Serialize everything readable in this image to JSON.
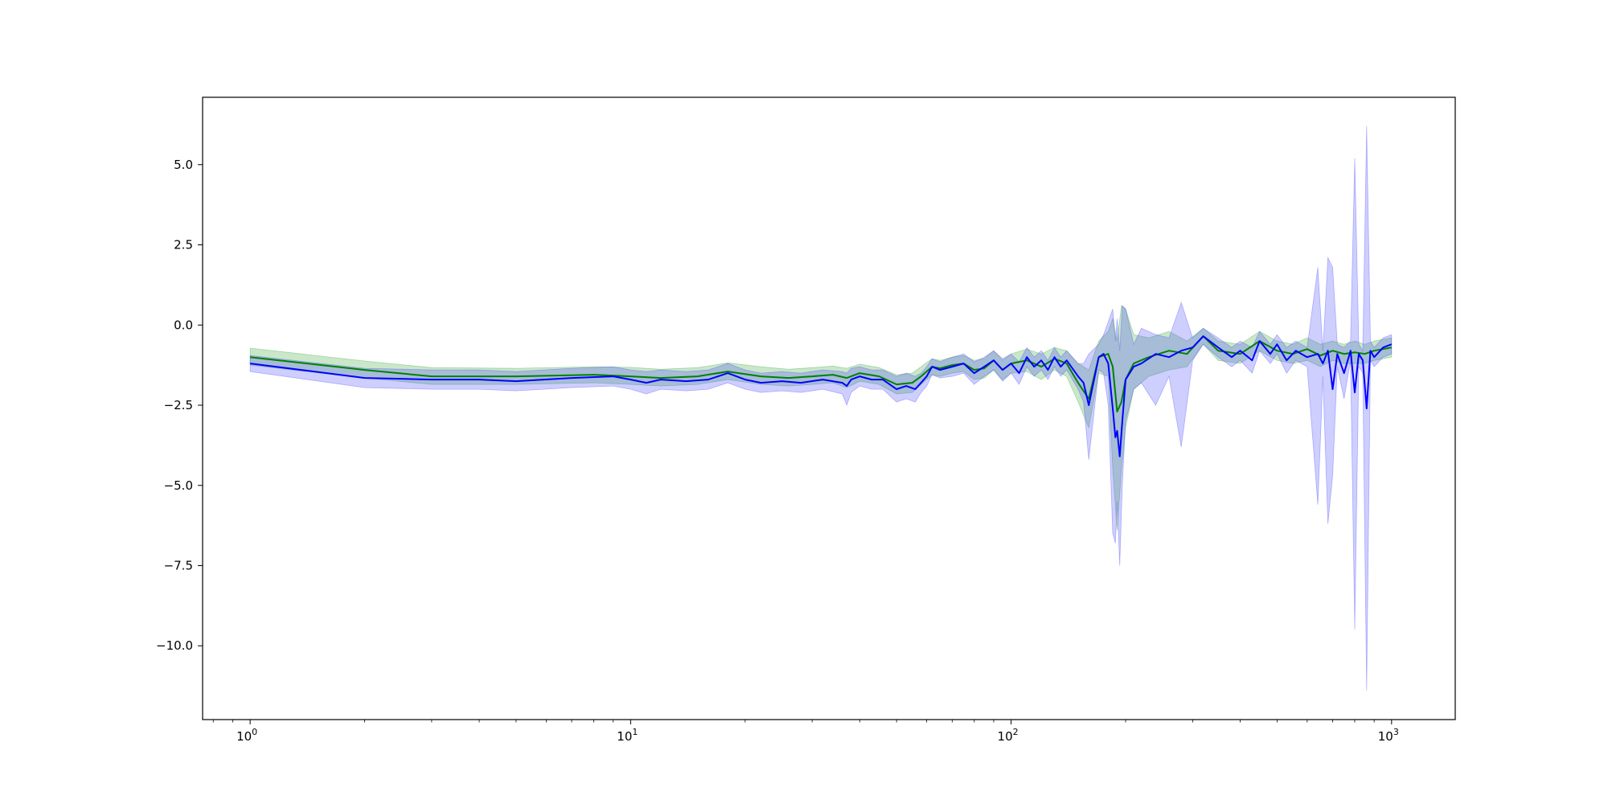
{
  "chart_data": {
    "type": "line",
    "title": "",
    "xlabel": "",
    "ylabel": "",
    "xscale": "log",
    "xlim": [
      0.75,
      1470
    ],
    "ylim": [
      -12.3,
      7.1
    ],
    "grid": false,
    "legend": "none",
    "x_ticks": [
      {
        "value": 1,
        "base": "10",
        "exp": "0"
      },
      {
        "value": 10,
        "base": "10",
        "exp": "1"
      },
      {
        "value": 100,
        "base": "10",
        "exp": "2"
      },
      {
        "value": 1000,
        "base": "10",
        "exp": "3"
      }
    ],
    "y_ticks": [
      {
        "value": 5.0,
        "label": "5.0"
      },
      {
        "value": 2.5,
        "label": "2.5"
      },
      {
        "value": 0.0,
        "label": "0.0"
      },
      {
        "value": -2.5,
        "label": "−2.5"
      },
      {
        "value": -5.0,
        "label": "−5.0"
      },
      {
        "value": -7.5,
        "label": "−7.5"
      },
      {
        "value": -10.0,
        "label": "−10.0"
      }
    ],
    "series": [
      {
        "color": "#008000",
        "band_color": "#2ca02c",
        "x": [
          1,
          2,
          3,
          5,
          8,
          10,
          12,
          15,
          18,
          22,
          26,
          30,
          34,
          37,
          40,
          45,
          50,
          55,
          58,
          62,
          65,
          70,
          75,
          80,
          85,
          90,
          95,
          100,
          110,
          120,
          130,
          140,
          150,
          160,
          170,
          180,
          185,
          190,
          195,
          200,
          210,
          230,
          260,
          290,
          320,
          350,
          400,
          450,
          500,
          550,
          600,
          650,
          700,
          750,
          800,
          850,
          900,
          1000
        ],
        "y": [
          -1.0,
          -1.4,
          -1.6,
          -1.6,
          -1.55,
          -1.6,
          -1.65,
          -1.6,
          -1.45,
          -1.6,
          -1.65,
          -1.6,
          -1.55,
          -1.65,
          -1.5,
          -1.6,
          -1.85,
          -1.8,
          -1.6,
          -1.3,
          -1.35,
          -1.25,
          -1.2,
          -1.4,
          -1.35,
          -1.1,
          -1.4,
          -1.2,
          -1.1,
          -1.3,
          -1.05,
          -1.2,
          -1.8,
          -2.3,
          -1.0,
          -0.9,
          -1.3,
          -2.7,
          -2.4,
          -1.7,
          -1.2,
          -1.0,
          -0.8,
          -0.9,
          -0.35,
          -0.8,
          -0.9,
          -0.5,
          -0.8,
          -0.9,
          -0.75,
          -0.95,
          -0.8,
          -0.9,
          -0.85,
          -0.9,
          -0.8,
          -0.7
        ],
        "lower": [
          -1.25,
          -1.65,
          -1.85,
          -1.85,
          -1.8,
          -1.85,
          -1.9,
          -1.85,
          -1.7,
          -1.85,
          -1.9,
          -1.85,
          -1.8,
          -1.95,
          -1.75,
          -1.85,
          -2.15,
          -2.1,
          -1.85,
          -1.55,
          -1.6,
          -1.5,
          -1.45,
          -1.7,
          -1.65,
          -1.4,
          -1.7,
          -1.5,
          -1.45,
          -1.7,
          -1.4,
          -1.6,
          -2.4,
          -3.2,
          -1.5,
          -1.6,
          -4.5,
          -6.4,
          -4.5,
          -3.2,
          -2.0,
          -1.6,
          -1.4,
          -1.3,
          -0.6,
          -1.1,
          -1.2,
          -0.8,
          -1.1,
          -1.2,
          -1.1,
          -1.3,
          -1.1,
          -1.2,
          -1.2,
          -1.2,
          -1.1,
          -1.0
        ],
        "upper": [
          -0.72,
          -1.12,
          -1.33,
          -1.35,
          -1.3,
          -1.32,
          -1.38,
          -1.33,
          -1.18,
          -1.3,
          -1.38,
          -1.33,
          -1.28,
          -1.35,
          -1.22,
          -1.33,
          -1.55,
          -1.5,
          -1.3,
          -1.05,
          -1.1,
          -1.0,
          -0.95,
          -1.1,
          -1.05,
          -0.8,
          -1.1,
          -0.9,
          -0.75,
          -0.9,
          -0.7,
          -0.8,
          -1.2,
          -1.4,
          -0.5,
          -0.2,
          0.2,
          -0.5,
          0.6,
          0.5,
          -0.3,
          -0.4,
          -0.2,
          -0.5,
          -0.1,
          -0.5,
          -0.6,
          -0.2,
          -0.5,
          -0.6,
          -0.4,
          -0.6,
          -0.5,
          -0.6,
          -0.5,
          -0.6,
          -0.5,
          -0.4
        ]
      },
      {
        "color": "#0000ff",
        "band_color": "#3b3bff",
        "x": [
          1,
          2,
          3,
          4,
          5,
          7,
          9,
          10,
          11,
          12,
          14,
          16,
          18,
          20,
          22,
          25,
          28,
          32,
          36,
          37,
          38,
          40,
          43,
          46,
          50,
          53,
          56,
          58,
          60,
          62,
          65,
          70,
          75,
          80,
          85,
          90,
          95,
          100,
          105,
          110,
          115,
          120,
          125,
          130,
          135,
          140,
          150,
          155,
          160,
          170,
          175,
          180,
          185,
          188,
          190,
          193,
          196,
          200,
          210,
          220,
          240,
          260,
          280,
          300,
          320,
          350,
          380,
          400,
          430,
          450,
          480,
          500,
          530,
          560,
          600,
          640,
          660,
          680,
          700,
          720,
          750,
          780,
          800,
          820,
          840,
          860,
          880,
          900,
          950,
          1000
        ],
        "y": [
          -1.2,
          -1.65,
          -1.7,
          -1.7,
          -1.75,
          -1.65,
          -1.6,
          -1.7,
          -1.8,
          -1.7,
          -1.75,
          -1.7,
          -1.5,
          -1.7,
          -1.8,
          -1.75,
          -1.8,
          -1.7,
          -1.8,
          -1.9,
          -1.7,
          -1.6,
          -1.7,
          -1.7,
          -2.0,
          -1.9,
          -2.0,
          -1.8,
          -1.6,
          -1.3,
          -1.4,
          -1.3,
          -1.2,
          -1.5,
          -1.3,
          -1.1,
          -1.4,
          -1.2,
          -1.5,
          -1.0,
          -1.3,
          -1.1,
          -1.4,
          -1.0,
          -1.3,
          -1.1,
          -1.6,
          -1.8,
          -2.5,
          -1.0,
          -0.9,
          -1.2,
          -2.6,
          -3.5,
          -3.3,
          -4.1,
          -3.0,
          -1.7,
          -1.3,
          -1.2,
          -0.9,
          -1.0,
          -0.8,
          -0.7,
          -0.35,
          -0.7,
          -1.0,
          -0.8,
          -1.1,
          -0.5,
          -0.9,
          -0.6,
          -1.1,
          -0.8,
          -1.0,
          -0.9,
          -1.2,
          -0.8,
          -2.0,
          -0.9,
          -1.5,
          -0.8,
          -2.1,
          -0.9,
          -1.1,
          -2.6,
          -0.8,
          -1.0,
          -0.7,
          -0.6
        ],
        "lower": [
          -1.45,
          -1.95,
          -2.0,
          -2.0,
          -2.05,
          -1.95,
          -1.9,
          -2.0,
          -2.15,
          -2.0,
          -2.05,
          -2.0,
          -1.8,
          -2.0,
          -2.1,
          -2.05,
          -2.1,
          -2.0,
          -2.15,
          -2.5,
          -2.1,
          -1.9,
          -2.0,
          -2.0,
          -2.4,
          -2.3,
          -2.4,
          -2.1,
          -1.9,
          -1.55,
          -1.65,
          -1.6,
          -1.5,
          -1.85,
          -1.6,
          -1.4,
          -1.75,
          -1.5,
          -1.85,
          -1.3,
          -1.6,
          -1.4,
          -1.7,
          -1.3,
          -1.6,
          -1.4,
          -2.0,
          -2.4,
          -4.2,
          -1.4,
          -1.5,
          -2.5,
          -6.5,
          -6.8,
          -5.5,
          -7.5,
          -5.0,
          -3.0,
          -2.0,
          -1.8,
          -2.5,
          -1.6,
          -3.8,
          -1.1,
          -0.6,
          -1.0,
          -1.3,
          -1.1,
          -1.5,
          -0.8,
          -1.2,
          -0.9,
          -1.5,
          -1.1,
          -1.3,
          -5.6,
          -1.6,
          -6.2,
          -4.7,
          -1.3,
          -2.3,
          -1.1,
          -9.5,
          -1.3,
          -1.5,
          -11.4,
          -1.1,
          -1.3,
          -1.0,
          -0.9
        ],
        "upper": [
          -0.95,
          -1.35,
          -1.4,
          -1.4,
          -1.45,
          -1.35,
          -1.3,
          -1.4,
          -1.45,
          -1.4,
          -1.45,
          -1.4,
          -1.2,
          -1.4,
          -1.5,
          -1.45,
          -1.5,
          -1.4,
          -1.45,
          -1.5,
          -1.35,
          -1.3,
          -1.4,
          -1.4,
          -1.6,
          -1.5,
          -1.6,
          -1.5,
          -1.3,
          -1.05,
          -1.15,
          -1.0,
          -0.9,
          -1.15,
          -1.0,
          -0.8,
          -1.05,
          -0.9,
          -1.15,
          -0.7,
          -1.0,
          -0.8,
          -1.1,
          -0.7,
          -1.0,
          -0.8,
          -1.2,
          -1.2,
          -0.9,
          -0.6,
          -0.3,
          0.1,
          0.5,
          -0.5,
          0.2,
          -0.8,
          0.6,
          0.5,
          -0.6,
          -0.1,
          -0.3,
          -0.4,
          0.7,
          -0.4,
          -0.1,
          -0.4,
          -0.7,
          -0.5,
          -0.7,
          -0.2,
          -0.6,
          -0.3,
          -0.7,
          -0.5,
          -0.7,
          1.8,
          -0.8,
          2.1,
          1.8,
          -0.6,
          -0.7,
          -0.5,
          5.2,
          -0.6,
          -0.8,
          6.2,
          -0.5,
          -0.7,
          -0.4,
          -0.3
        ]
      }
    ]
  }
}
